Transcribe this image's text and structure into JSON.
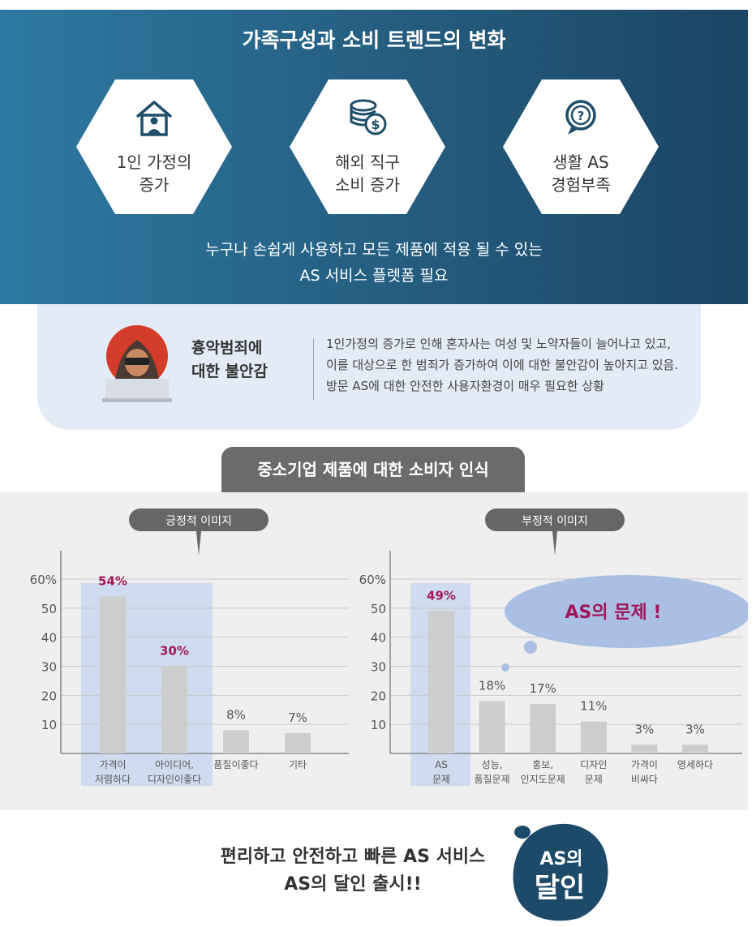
{
  "header": {
    "title": "가족구성과 소비 트렌드의 변화",
    "cards": [
      {
        "label": "1인 가정의\n증가",
        "icon": "house-person-icon"
      },
      {
        "label": "해외 직구\n소비 증가",
        "icon": "coins-dollar-icon"
      },
      {
        "label": "생활 AS\n경험부족",
        "icon": "question-bubble-icon"
      }
    ],
    "summary": "누구나 손쉽게 사용하고 모든 제품에 적용 될 수 있는\nAS 서비스 플렛폼 필요"
  },
  "info": {
    "icon": "hooded-hacker-icon",
    "title": "흉악범죄에\n대한 불안감",
    "text": "1인가정의 증가로 인해 혼자사는 여성 및 노약자들이 늘어나고 있고,\n이를 대상으로 한 범죄가 증가하여 이에 대한 불안감이 높아지고 있음.\n방문 AS에 대한 안전한 사용자환경이 매우 필요한 상황"
  },
  "section_title": "중소기업 제품에 대한 소비자 인식",
  "chart_data": [
    {
      "type": "bar",
      "title": "긍정적 이미지",
      "categories": [
        "가격이\n저렴하다",
        "아이디어,\n디자인이좋다",
        "품질이좋다",
        "기타"
      ],
      "values": [
        54,
        30,
        8,
        7
      ],
      "data_labels": [
        "54%",
        "30%",
        "8%",
        "7%"
      ],
      "highlighted": [
        0,
        1
      ],
      "yticks": [
        "60%",
        "50",
        "40",
        "30",
        "20",
        "10"
      ],
      "ylim": [
        0,
        60
      ],
      "grid": true
    },
    {
      "type": "bar",
      "title": "부정적 이미지",
      "categories": [
        "AS\n문제",
        "성능,\n품질문제",
        "홍보,\n인지도문제",
        "디자인\n문제",
        "가격이\n비싸다",
        "영세하다"
      ],
      "values": [
        49,
        18,
        17,
        11,
        3,
        3
      ],
      "data_labels": [
        "49%",
        "18%",
        "17%",
        "11%",
        "3%",
        "3%"
      ],
      "highlighted": [
        0
      ],
      "yticks": [
        "60%",
        "50",
        "40",
        "30",
        "20",
        "10"
      ],
      "ylim": [
        0,
        60
      ],
      "grid": true,
      "annotation": "AS의 문제 !"
    }
  ],
  "footer": {
    "text": "편리하고 안전하고 빠른 AS 서비스\nAS의 달인 출시!!",
    "logo_text": "AS의 달인"
  },
  "colors": {
    "header_bg_start": "#2d79a1",
    "header_bg_end": "#1c4463",
    "highlight": "#c9d8ee",
    "bar": "#cdcdcd",
    "accent": "#a0185a",
    "bubble": "#a9bfe3",
    "logo": "#1e4a6a"
  }
}
